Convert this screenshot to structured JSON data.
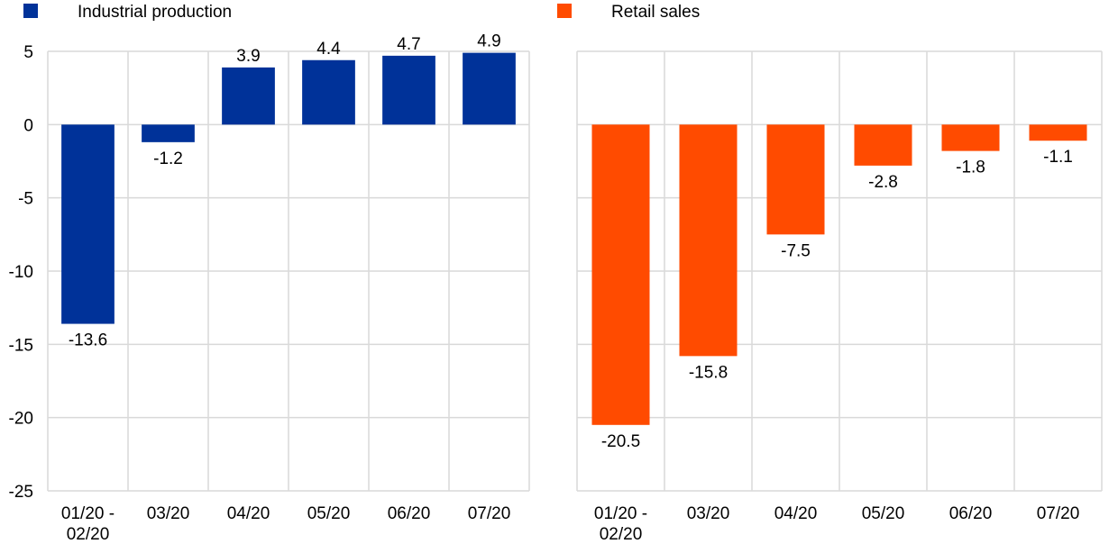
{
  "chart_data": [
    {
      "type": "bar",
      "title": "",
      "legend": {
        "label": "Industrial production",
        "placement": "top-left"
      },
      "color": "#003299",
      "categories": [
        "01/20 -\n02/20",
        "03/20",
        "04/20",
        "05/20",
        "06/20",
        "07/20"
      ],
      "values": [
        -13.6,
        -1.2,
        3.9,
        4.4,
        4.7,
        4.9
      ],
      "data_labels": [
        "-13.6",
        "-1.2",
        "3.9",
        "4.4",
        "4.7",
        "4.9"
      ],
      "ylim": [
        -25,
        5
      ],
      "yticks": [
        5,
        0,
        -5,
        -10,
        -15,
        -20,
        -25
      ],
      "grid": true,
      "xlabel": "",
      "ylabel": ""
    },
    {
      "type": "bar",
      "title": "",
      "legend": {
        "label": "Retail sales",
        "placement": "top-left"
      },
      "color": "#FF4B00",
      "categories": [
        "01/20 -\n02/20",
        "03/20",
        "04/20",
        "05/20",
        "06/20",
        "07/20"
      ],
      "values": [
        -20.5,
        -15.8,
        -7.5,
        -2.8,
        -1.8,
        -1.1
      ],
      "data_labels": [
        "-20.5",
        "-15.8",
        "-7.5",
        "-2.8",
        "-1.8",
        "-1.1"
      ],
      "ylim": [
        -25,
        5
      ],
      "grid": true,
      "xlabel": "",
      "ylabel": ""
    }
  ]
}
